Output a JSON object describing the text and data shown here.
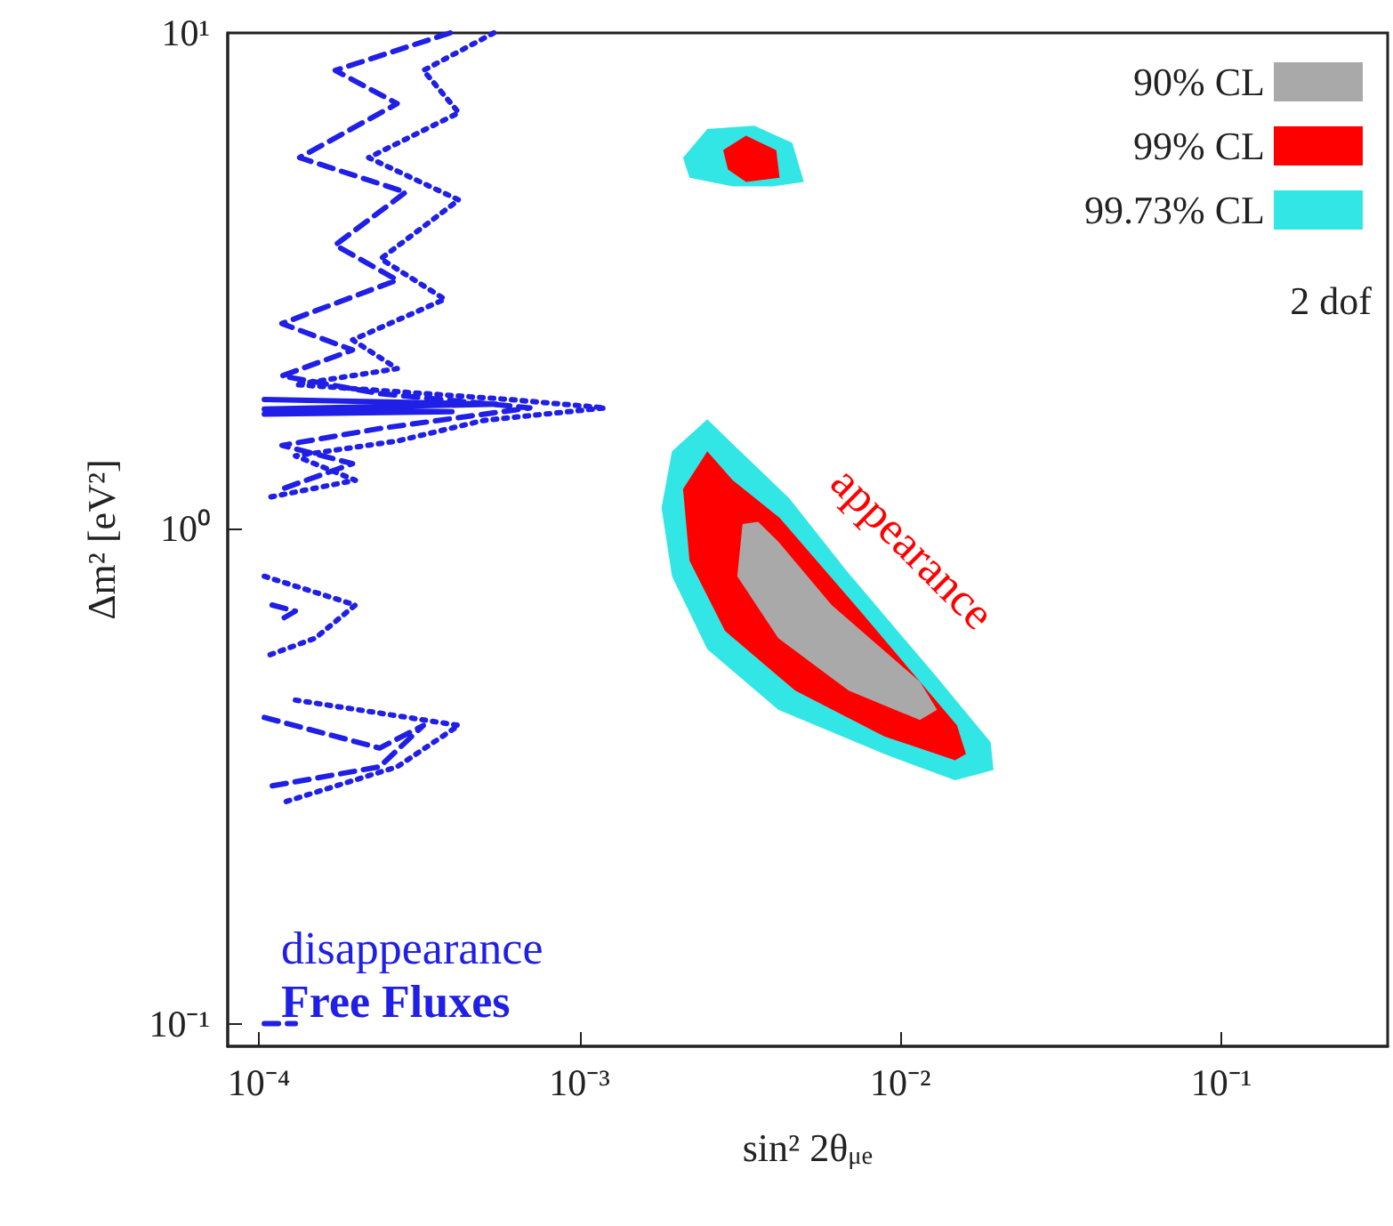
{
  "chart_data": {
    "type": "line",
    "xlabel": "sin² 2θ$_{μe}$",
    "ylabel": "Δm² [eV²]",
    "log": "xy",
    "grid": false,
    "legend": "top right",
    "legend_title": "2 dof",
    "marker": "none",
    "xlim": [
      8e-05,
      0.33
    ],
    "ylim": [
      0.09,
      10
    ],
    "xticks": [
      {
        "value": 0.0001,
        "label": "10⁻⁴"
      },
      {
        "value": 0.001,
        "label": "10⁻³"
      },
      {
        "value": 0.01,
        "label": "10⁻²"
      },
      {
        "value": 0.1,
        "label": "10⁻¹"
      }
    ],
    "yticks": [
      {
        "value": 0.1,
        "label": "10⁻¹"
      },
      {
        "value": 1,
        "label": "10⁰"
      },
      {
        "value": 10,
        "label": "10¹"
      }
    ],
    "annotations": [
      "disappearance",
      "Free Fluxes",
      "appearance"
    ],
    "series": [
      {
        "type": "area",
        "name": "90% CL",
        "color": "#a9a9a9",
        "x": [
          0.00322,
          0.0031,
          0.00416,
          0.0069,
          0.0115,
          0.013,
          0.0115,
          0.0061,
          0.00416,
          0.0036
        ],
        "values": [
          1.02,
          0.8,
          0.6,
          0.47,
          0.41,
          0.43,
          0.49,
          0.7,
          0.94,
          1.03
        ]
      },
      {
        "type": "area",
        "name": "99% CL",
        "color": "#ff0000",
        "x": [
          0.0025,
          0.0021,
          0.0022,
          0.00284,
          0.0047,
          0.00891,
          0.0148,
          0.016,
          0.015,
          0.0075,
          0.0042,
          0.003
        ],
        "values": [
          1.43,
          1.2,
          0.86,
          0.62,
          0.47,
          0.38,
          0.34,
          0.35,
          0.4,
          0.68,
          1.05,
          1.25
        ]
      },
      {
        "type": "area",
        "color": "#ff0000",
        "x": [
          0.0028,
          0.0033,
          0.0041,
          0.0042,
          0.0033,
          0.0029
        ],
        "values": [
          5.8,
          6.2,
          5.8,
          5.1,
          5.0,
          5.3
        ]
      },
      {
        "type": "area",
        "name": "99.73% CL",
        "color": "#33e6e6",
        "x": [
          0.0025,
          0.00194,
          0.0018,
          0.00194,
          0.0025,
          0.00416,
          0.00891,
          0.0148,
          0.0195,
          0.0191,
          0.013,
          0.0068,
          0.0045,
          0.0031
        ],
        "values": [
          1.66,
          1.43,
          1.1,
          0.8,
          0.57,
          0.43,
          0.35,
          0.31,
          0.325,
          0.37,
          0.5,
          0.82,
          1.15,
          1.45
        ]
      },
      {
        "type": "area",
        "color": "#33e6e6",
        "x": [
          0.0021,
          0.0025,
          0.0035,
          0.0046,
          0.005,
          0.004,
          0.003,
          0.0022
        ],
        "values": [
          5.6,
          6.4,
          6.5,
          6.0,
          5.0,
          4.9,
          4.9,
          5.1
        ]
      },
      {
        "color": "#1f1fe6",
        "line_style": "solid",
        "x": [
          0.000104,
          0.00055,
          0.000104,
          0.0004,
          0.000104
        ],
        "values": [
          1.82,
          1.78,
          1.74,
          1.72,
          1.7
        ]
      },
      {
        "color": "#1f1fe6",
        "line_style": "dashed",
        "x": [
          0.000395,
          0.000173,
          0.00027,
          0.000134,
          0.000287,
          0.000173,
          0.00027,
          0.000118,
          0.000196,
          0.000118,
          0.000238,
          0.0007,
          0.000238,
          0.000118,
          0.000196,
          0.000118
        ],
        "values": [
          10,
          8.4,
          7.2,
          5.6,
          4.77,
          3.73,
          3.17,
          2.59,
          2.29,
          2.03,
          1.87,
          1.75,
          1.59,
          1.47,
          1.35,
          1.2
        ]
      },
      {
        "color": "#1f1fe6",
        "line_style": "dashed",
        "x": [
          0.000104,
          0.000238,
          0.000326,
          0.000238,
          0.000104
        ],
        "values": [
          0.415,
          0.36,
          0.4,
          0.33,
          0.3
        ]
      },
      {
        "color": "#1f1fe6",
        "line_style": "dashed",
        "x": [
          0.00011,
          0.00013,
          0.00012
        ],
        "values": [
          0.7,
          0.68,
          0.66
        ]
      },
      {
        "color": "#1f1fe6",
        "line_style": "dotted",
        "x": [
          0.00054,
          0.000326,
          0.00042,
          0.00022,
          0.00042,
          0.00024,
          0.00038,
          0.000196,
          0.00027,
          0.00013,
          0.0006,
          0.0012,
          0.0005,
          0.00027,
          0.00013,
          0.0002,
          0.000104
        ],
        "values": [
          10,
          8.4,
          6.9,
          5.6,
          4.6,
          3.5,
          2.9,
          2.4,
          2.1,
          1.95,
          1.82,
          1.75,
          1.65,
          1.5,
          1.4,
          1.25,
          1.15
        ]
      },
      {
        "color": "#1f1fe6",
        "line_style": "dotted",
        "x": [
          0.000104,
          0.0002,
          0.00015,
          0.000104
        ],
        "values": [
          0.8,
          0.7,
          0.6,
          0.55
        ]
      },
      {
        "color": "#1f1fe6",
        "line_style": "dotted",
        "x": [
          0.00013,
          0.00042,
          0.00027,
          0.00012
        ],
        "values": [
          0.45,
          0.4,
          0.33,
          0.28
        ]
      },
      {
        "color": "#1f1fe6",
        "line_style": "dashed",
        "x": [
          0.000104,
          0.00013
        ],
        "values": [
          0.1,
          0.1
        ]
      }
    ]
  }
}
